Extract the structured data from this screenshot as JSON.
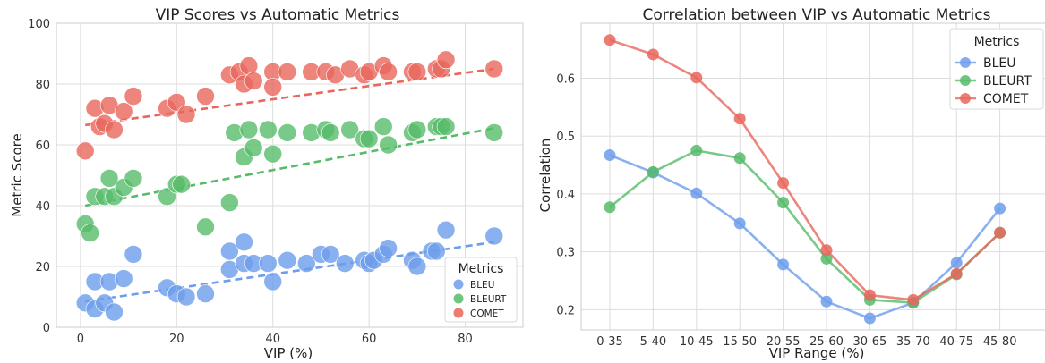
{
  "chart_data": [
    {
      "type": "scatter",
      "title": "VIP Scores vs Automatic Metrics",
      "xlabel": "VIP (%)",
      "ylabel": "Metric Score",
      "xlim": [
        -5,
        92
      ],
      "ylim": [
        0,
        100
      ],
      "xticks": [
        "0",
        "20",
        "40",
        "60",
        "80"
      ],
      "xtick_values": [
        0,
        20,
        40,
        60,
        80
      ],
      "yticks": [
        "0",
        "20",
        "40",
        "60",
        "80",
        "100"
      ],
      "ytick_values": [
        0,
        20,
        40,
        60,
        80,
        100
      ],
      "grid": true,
      "legend": {
        "title": "Metrics",
        "position": "bottom-right"
      },
      "series": [
        {
          "name": "BLEU",
          "color": "#6d9eeb",
          "x": [
            1,
            3,
            3,
            5,
            6,
            7,
            9,
            11,
            18,
            20,
            22,
            26,
            31,
            31,
            34,
            34,
            36,
            39,
            40,
            43,
            47,
            50,
            52,
            55,
            59,
            60,
            61,
            63,
            64,
            69,
            70,
            73,
            74,
            76,
            86
          ],
          "y": [
            8,
            15,
            6,
            8,
            15,
            5,
            16,
            24,
            13,
            11,
            10,
            11,
            25,
            19,
            21,
            28,
            21,
            21,
            15,
            22,
            21,
            24,
            24,
            21,
            22,
            21,
            22,
            24,
            26,
            22,
            20,
            25,
            25,
            32,
            30
          ],
          "trend": [
            [
              1,
              8.5
            ],
            [
              86,
              28
            ]
          ]
        },
        {
          "name": "BLEURT",
          "color": "#57bb6a",
          "x": [
            1,
            2,
            3,
            5,
            6,
            7,
            9,
            11,
            18,
            20,
            21,
            26,
            31,
            32,
            34,
            35,
            36,
            39,
            40,
            43,
            48,
            51,
            52,
            56,
            59,
            60,
            63,
            64,
            69,
            70,
            74,
            75,
            76,
            86
          ],
          "y": [
            34,
            31,
            43,
            43,
            49,
            43,
            46,
            49,
            43,
            47,
            47,
            33,
            41,
            64,
            56,
            65,
            59,
            65,
            57,
            64,
            64,
            65,
            64,
            65,
            62,
            62,
            66,
            60,
            64,
            65,
            66,
            66,
            66,
            64
          ],
          "trend": [
            [
              1,
              40
            ],
            [
              86,
              65.5
            ]
          ]
        },
        {
          "name": "COMET",
          "color": "#e8665c",
          "x": [
            1,
            3,
            4,
            5,
            6,
            7,
            9,
            11,
            18,
            20,
            22,
            26,
            31,
            33,
            34,
            35,
            36,
            40,
            40,
            43,
            48,
            51,
            53,
            56,
            59,
            60,
            63,
            64,
            69,
            70,
            74,
            75,
            76,
            86
          ],
          "y": [
            58,
            72,
            66,
            67,
            73,
            65,
            71,
            76,
            72,
            74,
            70,
            76,
            83,
            84,
            80,
            86,
            81,
            84,
            79,
            84,
            84,
            84,
            83,
            85,
            83,
            84,
            86,
            84,
            84,
            84,
            85,
            85,
            88,
            85
          ],
          "trend": [
            [
              1,
              66.5
            ],
            [
              86,
              85
            ]
          ]
        }
      ]
    },
    {
      "type": "line",
      "title": "Correlation between VIP vs Automatic Metrics",
      "xlabel": "VIP Range (%)",
      "ylabel": "Correlation",
      "categories": [
        "0-35",
        "5-40",
        "10-45",
        "15-50",
        "20-55",
        "25-60",
        "30-65",
        "35-70",
        "40-75",
        "45-80"
      ],
      "ylim": [
        0.165,
        0.695
      ],
      "yticks": [
        "0.2",
        "0.3",
        "0.4",
        "0.5",
        "0.6"
      ],
      "ytick_values": [
        0.2,
        0.3,
        0.4,
        0.5,
        0.6
      ],
      "grid": true,
      "legend": {
        "title": "Metrics",
        "position": "top-right"
      },
      "series": [
        {
          "name": "BLEU",
          "color": "#6d9eeb",
          "values": [
            0.467,
            0.437,
            0.401,
            0.349,
            0.278,
            0.214,
            0.185,
            0.212,
            0.281,
            0.375
          ]
        },
        {
          "name": "BLEURT",
          "color": "#57bb6a",
          "values": [
            0.377,
            0.438,
            0.475,
            0.462,
            0.385,
            0.288,
            0.217,
            0.212,
            0.261,
            0.333
          ]
        },
        {
          "name": "COMET",
          "color": "#e8665c",
          "values": [
            0.666,
            0.641,
            0.601,
            0.53,
            0.419,
            0.303,
            0.225,
            0.217,
            0.262,
            0.333
          ]
        }
      ]
    }
  ]
}
